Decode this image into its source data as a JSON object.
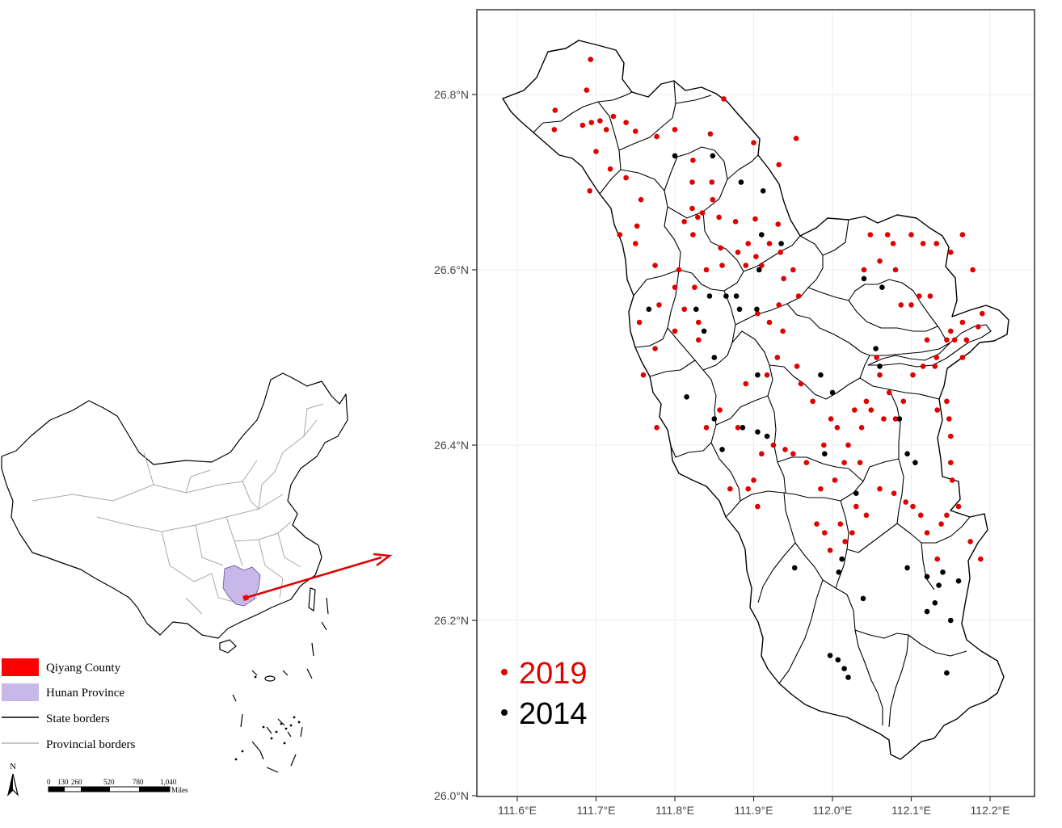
{
  "legend": {
    "items": [
      {
        "label": "Qiyang County",
        "color": "#ff0000",
        "kind": "fill"
      },
      {
        "label": "Hunan Province",
        "color": "#c8b8ea",
        "kind": "fill"
      },
      {
        "label": "State borders",
        "color": "#000000",
        "kind": "line"
      },
      {
        "label": "Provincial borders",
        "color": "#b0b0b0",
        "kind": "line"
      }
    ]
  },
  "north_arrow": {
    "label": "N"
  },
  "scale_bar": {
    "ticks": [
      "0",
      "130",
      "260",
      "520",
      "780",
      "1,040"
    ],
    "unit": "Miles"
  },
  "year_legend": [
    {
      "label": "2019",
      "color": "#e00000"
    },
    {
      "label": "2014",
      "color": "#000000"
    }
  ],
  "axes": {
    "x_ticks": [
      {
        "value": 111.6,
        "label": "111.6°E"
      },
      {
        "value": 111.7,
        "label": "111.7°E"
      },
      {
        "value": 111.8,
        "label": "111.8°E"
      },
      {
        "value": 111.9,
        "label": "111.9°E"
      },
      {
        "value": 112.0,
        "label": "112.0°E"
      },
      {
        "value": 112.1,
        "label": "112.1°E"
      },
      {
        "value": 112.2,
        "label": "112.2°E"
      }
    ],
    "y_ticks": [
      {
        "value": 26.0,
        "label": "26.0°N"
      },
      {
        "value": 26.2,
        "label": "26.2°N"
      },
      {
        "value": 26.4,
        "label": "26.4°N"
      },
      {
        "value": 26.6,
        "label": "26.6°N"
      },
      {
        "value": 26.8,
        "label": "26.8°N"
      }
    ],
    "xlim": [
      111.53,
      112.25
    ],
    "ylim": [
      25.99,
      26.89
    ]
  },
  "points_2019": [
    [
      111.693,
      26.84
    ],
    [
      111.688,
      26.805
    ],
    [
      111.648,
      26.782
    ],
    [
      111.647,
      26.76
    ],
    [
      111.683,
      26.765
    ],
    [
      111.694,
      26.768
    ],
    [
      111.705,
      26.77
    ],
    [
      111.713,
      26.76
    ],
    [
      111.722,
      26.775
    ],
    [
      111.738,
      26.768
    ],
    [
      111.75,
      26.758
    ],
    [
      111.7,
      26.735
    ],
    [
      111.718,
      26.715
    ],
    [
      111.738,
      26.705
    ],
    [
      111.692,
      26.69
    ],
    [
      111.777,
      26.752
    ],
    [
      111.8,
      26.76
    ],
    [
      111.845,
      26.755
    ],
    [
      111.862,
      26.795
    ],
    [
      111.9,
      26.745
    ],
    [
      111.932,
      26.72
    ],
    [
      111.954,
      26.75
    ],
    [
      111.823,
      26.725
    ],
    [
      111.822,
      26.7
    ],
    [
      111.822,
      26.67
    ],
    [
      111.847,
      26.7
    ],
    [
      111.848,
      26.68
    ],
    [
      111.757,
      26.68
    ],
    [
      111.752,
      26.65
    ],
    [
      111.75,
      26.63
    ],
    [
      111.73,
      26.64
    ],
    [
      111.812,
      26.655
    ],
    [
      111.829,
      26.66
    ],
    [
      111.835,
      26.665
    ],
    [
      111.823,
      26.64
    ],
    [
      111.858,
      26.625
    ],
    [
      111.856,
      26.66
    ],
    [
      111.877,
      26.655
    ],
    [
      111.902,
      26.658
    ],
    [
      111.931,
      26.652
    ],
    [
      111.893,
      26.63
    ],
    [
      111.903,
      26.615
    ],
    [
      111.92,
      26.63
    ],
    [
      111.934,
      26.62
    ],
    [
      111.91,
      26.605
    ],
    [
      111.88,
      26.62
    ],
    [
      111.84,
      26.6
    ],
    [
      111.86,
      26.605
    ],
    [
      111.89,
      26.605
    ],
    [
      111.775,
      26.605
    ],
    [
      111.805,
      26.6
    ],
    [
      111.8,
      26.58
    ],
    [
      111.78,
      26.56
    ],
    [
      111.8,
      26.53
    ],
    [
      111.812,
      26.555
    ],
    [
      111.825,
      26.58
    ],
    [
      111.83,
      26.54
    ],
    [
      111.83,
      26.52
    ],
    [
      111.755,
      26.54
    ],
    [
      111.775,
      26.51
    ],
    [
      111.76,
      26.48
    ],
    [
      111.777,
      26.42
    ],
    [
      111.84,
      26.42
    ],
    [
      111.857,
      26.44
    ],
    [
      111.88,
      26.42
    ],
    [
      111.89,
      26.47
    ],
    [
      111.917,
      26.48
    ],
    [
      111.93,
      26.5
    ],
    [
      111.905,
      26.55
    ],
    [
      111.92,
      26.54
    ],
    [
      111.932,
      26.56
    ],
    [
      111.957,
      26.57
    ],
    [
      111.938,
      26.59
    ],
    [
      111.95,
      26.6
    ],
    [
      111.937,
      26.53
    ],
    [
      111.955,
      26.49
    ],
    [
      111.96,
      26.47
    ],
    [
      111.975,
      26.45
    ],
    [
      111.998,
      26.43
    ],
    [
      111.989,
      26.4
    ],
    [
      112.006,
      26.42
    ],
    [
      112.02,
      26.4
    ],
    [
      112.028,
      26.44
    ],
    [
      112.037,
      26.42
    ],
    [
      112.043,
      26.45
    ],
    [
      112.049,
      26.44
    ],
    [
      112.015,
      26.38
    ],
    [
      112.035,
      26.38
    ],
    [
      112.003,
      26.36
    ],
    [
      111.985,
      26.35
    ],
    [
      111.967,
      26.38
    ],
    [
      111.95,
      26.39
    ],
    [
      111.94,
      26.395
    ],
    [
      111.925,
      26.4
    ],
    [
      111.91,
      26.39
    ],
    [
      111.9,
      26.36
    ],
    [
      111.893,
      26.35
    ],
    [
      111.87,
      26.35
    ],
    [
      111.905,
      26.33
    ],
    [
      111.98,
      26.31
    ],
    [
      111.99,
      26.3
    ],
    [
      111.997,
      26.28
    ],
    [
      112.01,
      26.31
    ],
    [
      112.016,
      26.29
    ],
    [
      112.025,
      26.3
    ],
    [
      112.03,
      26.33
    ],
    [
      112.043,
      26.32
    ],
    [
      112.06,
      26.35
    ],
    [
      112.078,
      26.345
    ],
    [
      112.093,
      26.335
    ],
    [
      112.102,
      26.33
    ],
    [
      112.112,
      26.32
    ],
    [
      112.12,
      26.3
    ],
    [
      112.138,
      26.31
    ],
    [
      112.145,
      26.32
    ],
    [
      112.152,
      26.36
    ],
    [
      112.15,
      26.38
    ],
    [
      112.16,
      26.33
    ],
    [
      112.175,
      26.29
    ],
    [
      112.188,
      26.27
    ],
    [
      112.133,
      26.27
    ],
    [
      112.145,
      26.45
    ],
    [
      112.148,
      26.43
    ],
    [
      112.15,
      26.41
    ],
    [
      112.133,
      26.44
    ],
    [
      112.115,
      26.49
    ],
    [
      112.102,
      26.48
    ],
    [
      112.09,
      26.45
    ],
    [
      112.08,
      26.43
    ],
    [
      112.065,
      26.43
    ],
    [
      112.072,
      26.46
    ],
    [
      112.06,
      26.48
    ],
    [
      112.056,
      26.5
    ],
    [
      112.048,
      26.64
    ],
    [
      112.077,
      26.63
    ],
    [
      112.1,
      26.64
    ],
    [
      112.115,
      26.63
    ],
    [
      112.132,
      26.63
    ],
    [
      112.15,
      26.62
    ],
    [
      112.165,
      26.64
    ],
    [
      112.178,
      26.6
    ],
    [
      112.19,
      26.55
    ],
    [
      112.165,
      26.54
    ],
    [
      112.15,
      26.53
    ],
    [
      112.145,
      26.52
    ],
    [
      112.124,
      26.57
    ],
    [
      112.11,
      26.57
    ],
    [
      112.1,
      26.56
    ],
    [
      112.087,
      26.56
    ],
    [
      112.08,
      26.6
    ],
    [
      112.07,
      26.64
    ],
    [
      112.06,
      26.61
    ],
    [
      112.04,
      26.6
    ],
    [
      112.132,
      26.5
    ],
    [
      112.155,
      26.52
    ],
    [
      112.165,
      26.5
    ],
    [
      112.17,
      26.52
    ],
    [
      112.185,
      26.535
    ],
    [
      112.12,
      26.52
    ],
    [
      112.13,
      26.49
    ]
  ],
  "points_2014": [
    [
      111.8,
      26.73
    ],
    [
      111.884,
      26.7
    ],
    [
      111.912,
      26.69
    ],
    [
      111.848,
      26.73
    ],
    [
      111.91,
      26.64
    ],
    [
      111.935,
      26.63
    ],
    [
      111.907,
      26.6
    ],
    [
      111.878,
      26.57
    ],
    [
      111.865,
      26.57
    ],
    [
      111.844,
      26.57
    ],
    [
      111.882,
      26.555
    ],
    [
      111.904,
      26.555
    ],
    [
      111.827,
      26.555
    ],
    [
      111.767,
      26.555
    ],
    [
      111.837,
      26.53
    ],
    [
      111.85,
      26.5
    ],
    [
      111.905,
      26.48
    ],
    [
      111.815,
      26.455
    ],
    [
      111.85,
      26.43
    ],
    [
      111.886,
      26.42
    ],
    [
      111.905,
      26.415
    ],
    [
      111.917,
      26.41
    ],
    [
      111.86,
      26.395
    ],
    [
      111.99,
      26.39
    ],
    [
      112.0,
      26.46
    ],
    [
      112.04,
      26.59
    ],
    [
      112.055,
      26.51
    ],
    [
      112.06,
      26.49
    ],
    [
      112.095,
      26.39
    ],
    [
      112.105,
      26.38
    ],
    [
      112.085,
      26.43
    ],
    [
      112.03,
      26.345
    ],
    [
      112.008,
      26.255
    ],
    [
      112.012,
      26.27
    ],
    [
      111.952,
      26.26
    ],
    [
      112.039,
      26.225
    ],
    [
      112.095,
      26.26
    ],
    [
      112.12,
      26.25
    ],
    [
      112.135,
      26.24
    ],
    [
      112.13,
      26.22
    ],
    [
      112.15,
      26.2
    ],
    [
      112.14,
      26.255
    ],
    [
      112.12,
      26.21
    ],
    [
      112.145,
      26.14
    ],
    [
      112.16,
      26.245
    ],
    [
      111.997,
      26.16
    ],
    [
      112.007,
      26.155
    ],
    [
      112.015,
      26.145
    ],
    [
      112.02,
      26.135
    ],
    [
      112.063,
      26.58
    ],
    [
      111.985,
      26.48
    ]
  ]
}
